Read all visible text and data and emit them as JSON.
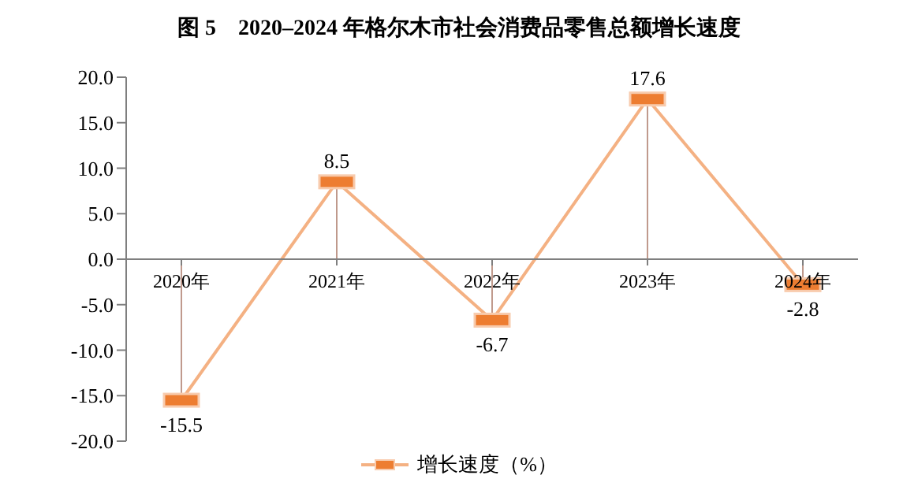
{
  "chart_data": {
    "type": "line",
    "title": "图 5　2020–2024 年格尔木市社会消费品零售总额增长速度",
    "categories": [
      "2020年",
      "2021年",
      "2022年",
      "2023年",
      "2024年"
    ],
    "series": [
      {
        "name": "增长速度（%）",
        "color": "#f4b183",
        "values": [
          -15.5,
          8.5,
          -6.7,
          17.6,
          -2.8
        ]
      }
    ],
    "ylim": [
      -20,
      20
    ],
    "yticks": [
      {
        "value": -20,
        "label": "-20.0"
      },
      {
        "value": -15,
        "label": "-15.0"
      },
      {
        "value": -10,
        "label": "-10.0"
      },
      {
        "value": -5,
        "label": "-5.0"
      },
      {
        "value": 0,
        "label": "0.0"
      },
      {
        "value": 5,
        "label": "5.0"
      },
      {
        "value": 10,
        "label": "10.0"
      },
      {
        "value": 15,
        "label": "15.0"
      },
      {
        "value": 20,
        "label": "20.0"
      }
    ],
    "grid": false,
    "legend": "bottom",
    "marker": "square",
    "line_style": "solid",
    "data_labels": true
  }
}
